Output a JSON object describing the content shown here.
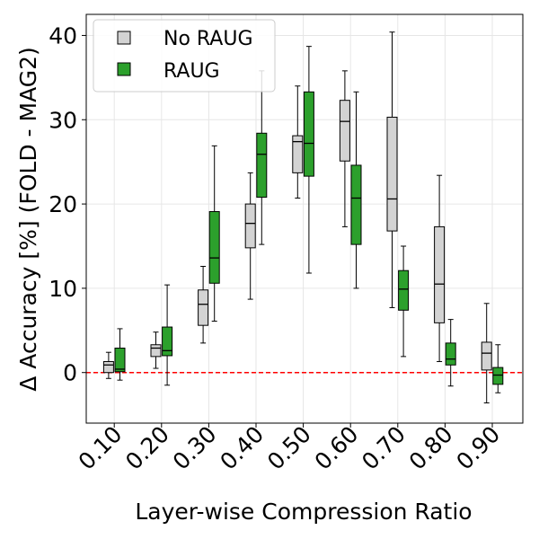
{
  "chart_data": {
    "type": "box",
    "xlabel": "Layer-wise Compression Ratio",
    "ylabel": "Δ Accuracy [%] (FOLD - MAG2)",
    "categories": [
      "0.10",
      "0.20",
      "0.30",
      "0.40",
      "0.50",
      "0.60",
      "0.70",
      "0.80",
      "0.90"
    ],
    "ylim": [
      -6,
      42.5
    ],
    "yticks": [
      0,
      10,
      20,
      30,
      40
    ],
    "grid": true,
    "legend_position": "upper-left",
    "reference_line": {
      "y": 0,
      "color": "#ff0000",
      "style": "dashed"
    },
    "series": [
      {
        "name": "No RAUG",
        "color": "#d3d3d3",
        "boxes": [
          {
            "min": -0.7,
            "q1": 0.0,
            "median": 0.9,
            "q3": 1.3,
            "max": 2.4
          },
          {
            "min": 0.5,
            "q1": 1.9,
            "median": 2.9,
            "q3": 3.3,
            "max": 4.8
          },
          {
            "min": 3.5,
            "q1": 5.6,
            "median": 8.1,
            "q3": 9.8,
            "max": 12.6
          },
          {
            "min": 8.7,
            "q1": 14.8,
            "median": 17.7,
            "q3": 20.0,
            "max": 23.7
          },
          {
            "min": 20.7,
            "q1": 23.7,
            "median": 27.4,
            "q3": 28.1,
            "max": 34.0
          },
          {
            "min": 17.3,
            "q1": 25.1,
            "median": 29.8,
            "q3": 32.3,
            "max": 35.8
          },
          {
            "min": 7.7,
            "q1": 16.8,
            "median": 20.6,
            "q3": 30.3,
            "max": 40.4
          },
          {
            "min": 1.3,
            "q1": 5.9,
            "median": 10.5,
            "q3": 17.3,
            "max": 23.4
          },
          {
            "min": -3.6,
            "q1": 0.3,
            "median": 2.3,
            "q3": 3.6,
            "max": 8.2
          }
        ]
      },
      {
        "name": "RAUG",
        "color": "#2ca02c",
        "boxes": [
          {
            "min": -0.9,
            "q1": 0.1,
            "median": 0.4,
            "q3": 2.9,
            "max": 5.2
          },
          {
            "min": -1.5,
            "q1": 2.0,
            "median": 2.6,
            "q3": 5.4,
            "max": 10.4
          },
          {
            "min": 6.1,
            "q1": 10.6,
            "median": 13.6,
            "q3": 19.1,
            "max": 26.9
          },
          {
            "min": 15.2,
            "q1": 20.8,
            "median": 25.9,
            "q3": 28.4,
            "max": 35.8
          },
          {
            "min": 11.8,
            "q1": 23.3,
            "median": 27.2,
            "q3": 33.3,
            "max": 38.7
          },
          {
            "min": 10.0,
            "q1": 15.2,
            "median": 20.7,
            "q3": 24.6,
            "max": 33.3
          },
          {
            "min": 1.9,
            "q1": 7.4,
            "median": 9.9,
            "q3": 12.1,
            "max": 15.0
          },
          {
            "min": -1.6,
            "q1": 0.9,
            "median": 1.6,
            "q3": 3.5,
            "max": 6.3
          },
          {
            "min": -2.4,
            "q1": -1.4,
            "median": -0.3,
            "q3": 0.6,
            "max": 3.3
          }
        ]
      }
    ]
  }
}
